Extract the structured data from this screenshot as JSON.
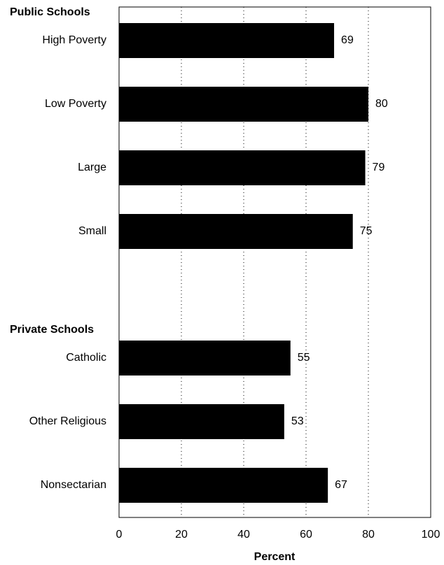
{
  "chart_data": {
    "type": "bar",
    "orientation": "horizontal",
    "color": "#000000",
    "groups": [
      {
        "name": "Public Schools",
        "categories": [
          "High Poverty",
          "Low Poverty",
          "Large",
          "Small"
        ],
        "values": [
          69,
          80,
          79,
          75
        ]
      },
      {
        "name": "Private Schools",
        "categories": [
          "Catholic",
          "Other Religious",
          "Nonsectarian"
        ],
        "values": [
          55,
          53,
          67
        ]
      }
    ],
    "xlabel": "Percent",
    "xlim": [
      0,
      100
    ],
    "xticks": [
      0,
      20,
      40,
      60,
      80,
      100
    ],
    "grid": true
  }
}
